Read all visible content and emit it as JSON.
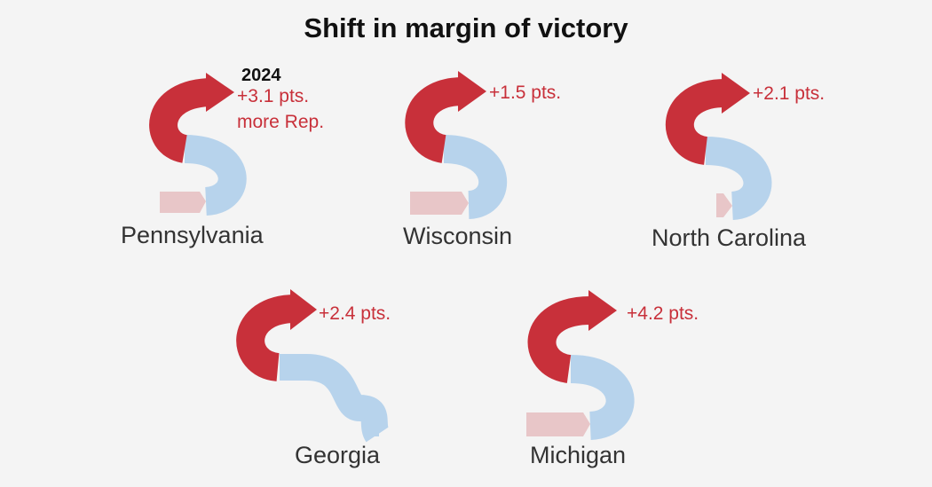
{
  "title": "Shift in margin of victory",
  "colors": {
    "rep": "#c8303a",
    "dem": "#b7d3ec",
    "earlier_rep": "#e8c6c8",
    "background": "#f4f4f4"
  },
  "chart_data": {
    "type": "arrow-shift",
    "title": "Shift in margin of victory",
    "year_label": "2024",
    "unit": "pts.",
    "states": [
      {
        "name": "Pennsylvania",
        "shift": 3.1,
        "label": "+3.1 pts.",
        "note": "more Rep.",
        "start_party": "Rep."
      },
      {
        "name": "Wisconsin",
        "shift": 1.5,
        "label": "+1.5 pts.",
        "note": "",
        "start_party": "Rep."
      },
      {
        "name": "North Carolina",
        "shift": 2.1,
        "label": "+2.1 pts.",
        "note": "",
        "start_party": "Rep."
      },
      {
        "name": "Georgia",
        "shift": 2.4,
        "label": "+2.4 pts.",
        "note": "",
        "start_party": "Dem."
      },
      {
        "name": "Michigan",
        "shift": 4.2,
        "label": "+4.2 pts.",
        "note": "",
        "start_party": "Rep."
      }
    ]
  }
}
